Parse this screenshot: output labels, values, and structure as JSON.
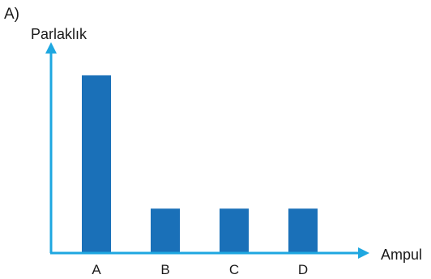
{
  "option_label": "A)",
  "colors": {
    "axis": "#1ea7e0",
    "bar": "#1a70b8"
  },
  "chart_data": {
    "type": "bar",
    "title": "",
    "xlabel": "Ampul",
    "ylabel": "Parlaklık",
    "categories": [
      "A",
      "B",
      "C",
      "D"
    ],
    "values": [
      4,
      1,
      1,
      1
    ],
    "ylim": [
      0,
      4.6
    ],
    "grid": false,
    "legend": "none",
    "y_tick_labels": false
  }
}
